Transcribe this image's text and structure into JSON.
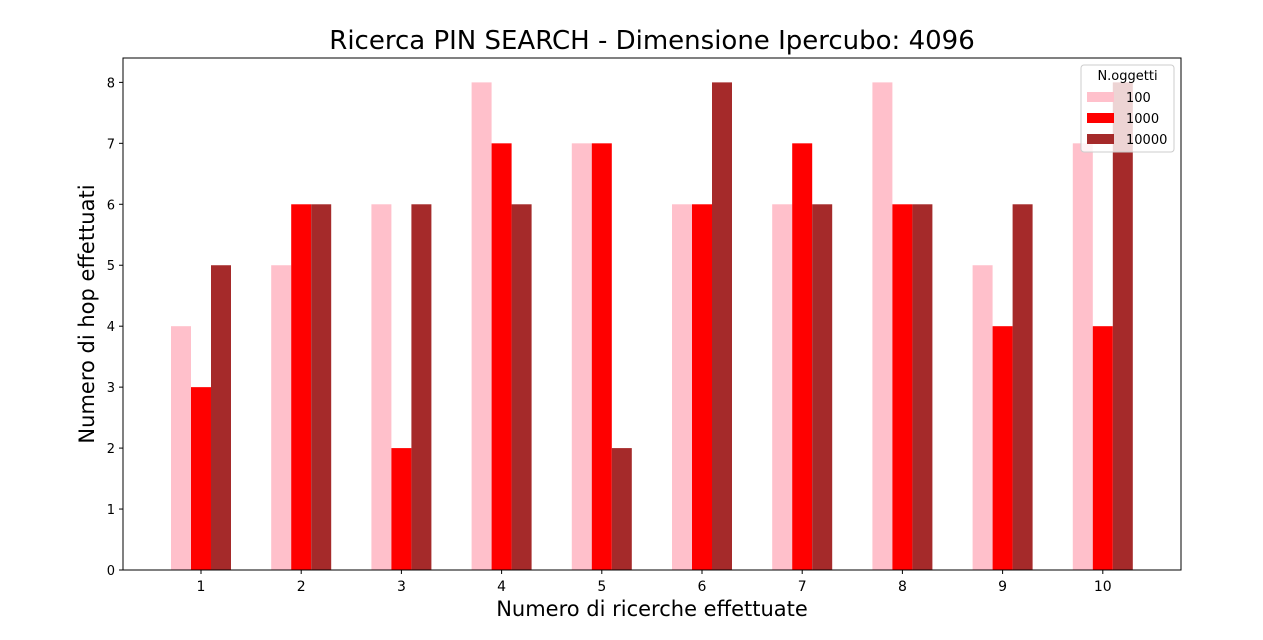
{
  "chart_data": {
    "type": "bar",
    "title": "Ricerca PIN SEARCH - Dimensione Ipercubo: 4096",
    "xlabel": "Numero di ricerche effettuate",
    "ylabel": "Numero di hop effettuati",
    "categories": [
      "1",
      "2",
      "3",
      "4",
      "5",
      "6",
      "7",
      "8",
      "9",
      "10"
    ],
    "series": [
      {
        "name": "100",
        "color": "#ffc0cb",
        "values": [
          4,
          5,
          6,
          8,
          7,
          6,
          6,
          8,
          5,
          7
        ]
      },
      {
        "name": "1000",
        "color": "#ff0000",
        "values": [
          3,
          6,
          2,
          7,
          7,
          6,
          7,
          6,
          4,
          4
        ]
      },
      {
        "name": "10000",
        "color": "#a52a2a",
        "values": [
          5,
          6,
          6,
          6,
          2,
          8,
          6,
          6,
          6,
          8
        ]
      }
    ],
    "yticks": [
      "0",
      "1",
      "2",
      "3",
      "4",
      "5",
      "6",
      "7",
      "8"
    ],
    "ylim": [
      0,
      8.4
    ],
    "legend": {
      "title": "N.oggetti",
      "placement": "top-right"
    },
    "grid": false
  }
}
